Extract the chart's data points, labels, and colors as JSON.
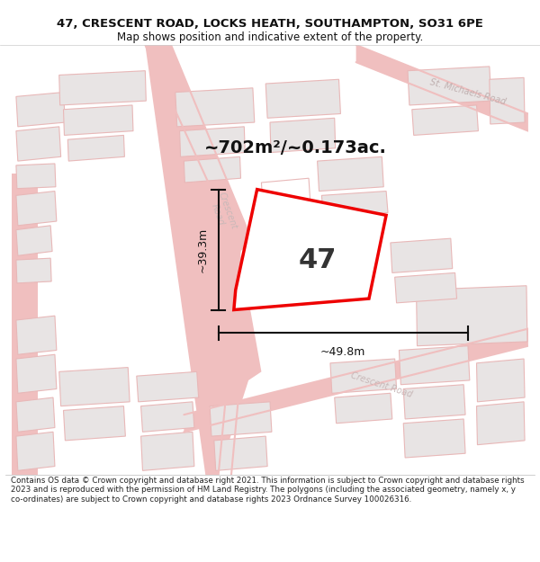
{
  "title_line1": "47, CRESCENT ROAD, LOCKS HEATH, SOUTHAMPTON, SO31 6PE",
  "title_line2": "Map shows position and indicative extent of the property.",
  "area_text": "~702m²/~0.173ac.",
  "property_number": "47",
  "width_label": "~49.8m",
  "height_label": "~39.3m",
  "footer_text": "Contains OS data © Crown copyright and database right 2021. This information is subject to Crown copyright and database rights 2023 and is reproduced with the permission of HM Land Registry. The polygons (including the associated geometry, namely x, y co-ordinates) are subject to Crown copyright and database rights 2023 Ordnance Survey 100026316.",
  "bg_color": "#ffffff",
  "map_bg": "#ffffff",
  "road_color": "#f0bfbf",
  "building_fill": "#e8e4e4",
  "building_outline": "#e8b8b8",
  "highlight_color": "#ee0000",
  "road_label_color": "#c0b0b0",
  "dim_color": "#111111",
  "title_color": "#111111",
  "footer_color": "#222222",
  "crescent_road_label_color": "#c8b8b8",
  "st_michaels_label_color": "#c0b0b0"
}
